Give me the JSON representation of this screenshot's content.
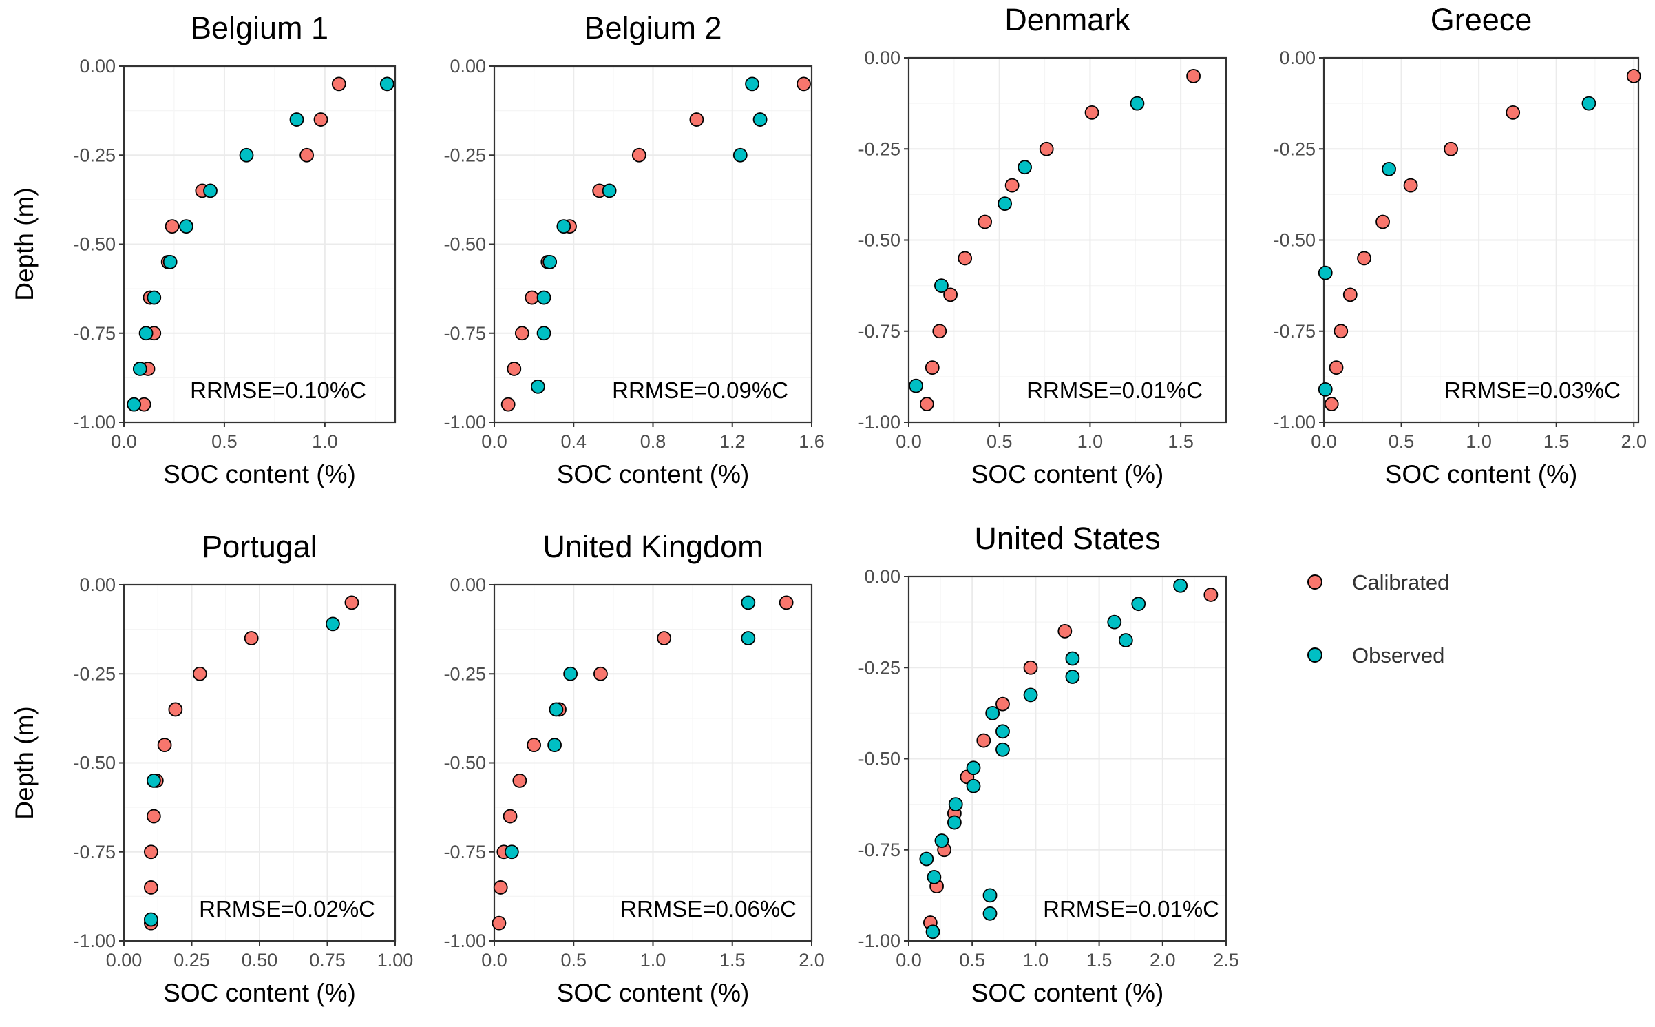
{
  "chart_data": [
    {
      "type": "scatter",
      "title": "Belgium 1",
      "xlabel": "SOC content (%)",
      "ylabel": "Depth (m)",
      "xlim": [
        0,
        1.35
      ],
      "ylim": [
        -1.0,
        0.0
      ],
      "xticks": [
        0.0,
        0.5,
        1.0
      ],
      "xtick_labels": [
        "0.0",
        "0.5",
        "1.0"
      ],
      "yticks": [
        0.0,
        -0.25,
        -0.5,
        -0.75,
        -1.0
      ],
      "ytick_labels": [
        "0.00",
        "-0.25",
        "-0.50",
        "-0.75",
        "-1.00"
      ],
      "annotation": "RRMSE=0.10%C",
      "series": [
        {
          "name": "Calibrated",
          "x": [
            1.07,
            0.98,
            0.91,
            0.39,
            0.24,
            0.22,
            0.13,
            0.15,
            0.12,
            0.1
          ],
          "y": [
            -0.05,
            -0.15,
            -0.25,
            -0.35,
            -0.45,
            -0.55,
            -0.65,
            -0.75,
            -0.85,
            -0.95
          ]
        },
        {
          "name": "Observed",
          "x": [
            1.31,
            0.86,
            0.61,
            0.43,
            0.31,
            0.23,
            0.15,
            0.11,
            0.08,
            0.05
          ],
          "y": [
            -0.05,
            -0.15,
            -0.25,
            -0.35,
            -0.45,
            -0.55,
            -0.65,
            -0.75,
            -0.85,
            -0.95
          ]
        }
      ]
    },
    {
      "type": "scatter",
      "title": "Belgium 2",
      "xlabel": "SOC content (%)",
      "ylabel": "",
      "xlim": [
        0,
        1.6
      ],
      "ylim": [
        -1.0,
        0.0
      ],
      "xticks": [
        0.0,
        0.4,
        0.8,
        1.2,
        1.6
      ],
      "xtick_labels": [
        "0.0",
        "0.4",
        "0.8",
        "1.2",
        "1.6"
      ],
      "yticks": [
        0.0,
        -0.25,
        -0.5,
        -0.75,
        -1.0
      ],
      "ytick_labels": [
        "0.00",
        "-0.25",
        "-0.50",
        "-0.75",
        "-1.00"
      ],
      "annotation": "RRMSE=0.09%C",
      "series": [
        {
          "name": "Calibrated",
          "x": [
            1.56,
            1.02,
            0.73,
            0.53,
            0.38,
            0.27,
            0.19,
            0.14,
            0.1,
            0.07
          ],
          "y": [
            -0.05,
            -0.15,
            -0.25,
            -0.35,
            -0.45,
            -0.55,
            -0.65,
            -0.75,
            -0.85,
            -0.95
          ]
        },
        {
          "name": "Observed",
          "x": [
            1.3,
            1.34,
            1.24,
            0.58,
            0.35,
            0.28,
            0.25,
            0.25,
            0.22
          ],
          "y": [
            -0.05,
            -0.15,
            -0.25,
            -0.35,
            -0.45,
            -0.55,
            -0.65,
            -0.75,
            -0.9
          ]
        }
      ]
    },
    {
      "type": "scatter",
      "title": "Denmark",
      "xlabel": "SOC content (%)",
      "ylabel": "",
      "xlim": [
        0,
        1.75
      ],
      "ylim": [
        -1.0,
        0.0
      ],
      "xticks": [
        0.0,
        0.5,
        1.0,
        1.5
      ],
      "xtick_labels": [
        "0.0",
        "0.5",
        "1.0",
        "1.5"
      ],
      "yticks": [
        0.0,
        -0.25,
        -0.5,
        -0.75,
        -1.0
      ],
      "ytick_labels": [
        "0.00",
        "-0.25",
        "-0.50",
        "-0.75",
        "-1.00"
      ],
      "annotation": "RRMSE=0.01%C",
      "series": [
        {
          "name": "Calibrated",
          "x": [
            1.57,
            1.01,
            0.76,
            0.57,
            0.42,
            0.31,
            0.23,
            0.17,
            0.13,
            0.1
          ],
          "y": [
            -0.05,
            -0.15,
            -0.25,
            -0.35,
            -0.45,
            -0.55,
            -0.65,
            -0.75,
            -0.85,
            -0.95
          ]
        },
        {
          "name": "Observed",
          "x": [
            1.26,
            0.64,
            0.53,
            0.18,
            0.04
          ],
          "y": [
            -0.125,
            -0.3,
            -0.4,
            -0.625,
            -0.9
          ]
        }
      ]
    },
    {
      "type": "scatter",
      "title": "Greece",
      "xlabel": "SOC content (%)",
      "ylabel": "",
      "xlim": [
        0,
        2.03
      ],
      "ylim": [
        -1.0,
        0.0
      ],
      "xticks": [
        0.0,
        0.5,
        1.0,
        1.5,
        2.0
      ],
      "xtick_labels": [
        "0.0",
        "0.5",
        "1.0",
        "1.5",
        "2.0"
      ],
      "yticks": [
        0.0,
        -0.25,
        -0.5,
        -0.75,
        -1.0
      ],
      "ytick_labels": [
        "0.00",
        "-0.25",
        "-0.50",
        "-0.75",
        "-1.00"
      ],
      "annotation": "RRMSE=0.03%C",
      "series": [
        {
          "name": "Calibrated",
          "x": [
            2.0,
            1.22,
            0.82,
            0.56,
            0.38,
            0.26,
            0.17,
            0.11,
            0.08,
            0.05
          ],
          "y": [
            -0.05,
            -0.15,
            -0.25,
            -0.35,
            -0.45,
            -0.55,
            -0.65,
            -0.75,
            -0.85,
            -0.95
          ]
        },
        {
          "name": "Observed",
          "x": [
            1.71,
            0.42,
            0.01,
            0.01
          ],
          "y": [
            -0.125,
            -0.305,
            -0.59,
            -0.91
          ]
        }
      ]
    },
    {
      "type": "scatter",
      "title": "Portugal",
      "xlabel": "SOC content (%)",
      "ylabel": "Depth (m)",
      "xlim": [
        0,
        1.0
      ],
      "ylim": [
        -1.0,
        0.0
      ],
      "xticks": [
        0.0,
        0.25,
        0.5,
        0.75,
        1.0
      ],
      "xtick_labels": [
        "0.00",
        "0.25",
        "0.50",
        "0.75",
        "1.00"
      ],
      "yticks": [
        0.0,
        -0.25,
        -0.5,
        -0.75,
        -1.0
      ],
      "ytick_labels": [
        "0.00",
        "-0.25",
        "-0.50",
        "-0.75",
        "-1.00"
      ],
      "annotation": "RRMSE=0.02%C",
      "series": [
        {
          "name": "Calibrated",
          "x": [
            0.84,
            0.47,
            0.28,
            0.19,
            0.15,
            0.12,
            0.11,
            0.1,
            0.1,
            0.1
          ],
          "y": [
            -0.05,
            -0.15,
            -0.25,
            -0.35,
            -0.45,
            -0.55,
            -0.65,
            -0.75,
            -0.85,
            -0.95
          ]
        },
        {
          "name": "Observed",
          "x": [
            0.77,
            0.11,
            0.1
          ],
          "y": [
            -0.11,
            -0.55,
            -0.94
          ]
        }
      ]
    },
    {
      "type": "scatter",
      "title": "United Kingdom",
      "xlabel": "SOC content (%)",
      "ylabel": "",
      "xlim": [
        0,
        2.0
      ],
      "ylim": [
        -1.0,
        0.0
      ],
      "xticks": [
        0.0,
        0.5,
        1.0,
        1.5,
        2.0
      ],
      "xtick_labels": [
        "0.0",
        "0.5",
        "1.0",
        "1.5",
        "2.0"
      ],
      "yticks": [
        0.0,
        -0.25,
        -0.5,
        -0.75,
        -1.0
      ],
      "ytick_labels": [
        "0.00",
        "-0.25",
        "-0.50",
        "-0.75",
        "-1.00"
      ],
      "annotation": "RRMSE=0.06%C",
      "series": [
        {
          "name": "Calibrated",
          "x": [
            1.84,
            1.07,
            0.67,
            0.41,
            0.25,
            0.16,
            0.1,
            0.06,
            0.04,
            0.03
          ],
          "y": [
            -0.05,
            -0.15,
            -0.25,
            -0.35,
            -0.45,
            -0.55,
            -0.65,
            -0.75,
            -0.85,
            -0.95
          ]
        },
        {
          "name": "Observed",
          "x": [
            1.6,
            1.6,
            0.48,
            0.39,
            0.38,
            0.11
          ],
          "y": [
            -0.05,
            -0.15,
            -0.25,
            -0.35,
            -0.45,
            -0.75
          ]
        }
      ]
    },
    {
      "type": "scatter",
      "title": "United States",
      "xlabel": "SOC content (%)",
      "ylabel": "",
      "xlim": [
        0,
        2.5
      ],
      "ylim": [
        -1.0,
        0.0
      ],
      "xticks": [
        0.0,
        0.5,
        1.0,
        1.5,
        2.0,
        2.5
      ],
      "xtick_labels": [
        "0.0",
        "0.5",
        "1.0",
        "1.5",
        "2.0",
        "2.5"
      ],
      "yticks": [
        0.0,
        -0.25,
        -0.5,
        -0.75,
        -1.0
      ],
      "ytick_labels": [
        "0.00",
        "-0.25",
        "-0.50",
        "-0.75",
        "-1.00"
      ],
      "annotation": "RRMSE=0.01%C",
      "series": [
        {
          "name": "Calibrated",
          "x": [
            2.38,
            1.23,
            0.96,
            0.74,
            0.59,
            0.46,
            0.36,
            0.28,
            0.22,
            0.17
          ],
          "y": [
            -0.05,
            -0.15,
            -0.25,
            -0.35,
            -0.45,
            -0.55,
            -0.65,
            -0.75,
            -0.85,
            -0.95
          ]
        },
        {
          "name": "Observed",
          "x": [
            2.14,
            1.81,
            1.62,
            1.71,
            1.29,
            1.29,
            0.96,
            0.66,
            0.74,
            0.74,
            0.51,
            0.51,
            0.37,
            0.36,
            0.26,
            0.14,
            0.2,
            0.19,
            0.64,
            0.64
          ],
          "y": [
            -0.025,
            -0.075,
            -0.125,
            -0.175,
            -0.225,
            -0.275,
            -0.325,
            -0.375,
            -0.425,
            -0.475,
            -0.525,
            -0.575,
            -0.625,
            -0.675,
            -0.725,
            -0.775,
            -0.825,
            -0.975,
            -0.875,
            -0.925
          ]
        }
      ]
    }
  ],
  "legend": {
    "placement": "right",
    "items": [
      {
        "label": "Calibrated",
        "color": "#F8766D"
      },
      {
        "label": "Observed",
        "color": "#00BFC4"
      }
    ]
  },
  "colors": {
    "Calibrated": "#F8766D",
    "Observed": "#00BFC4"
  }
}
